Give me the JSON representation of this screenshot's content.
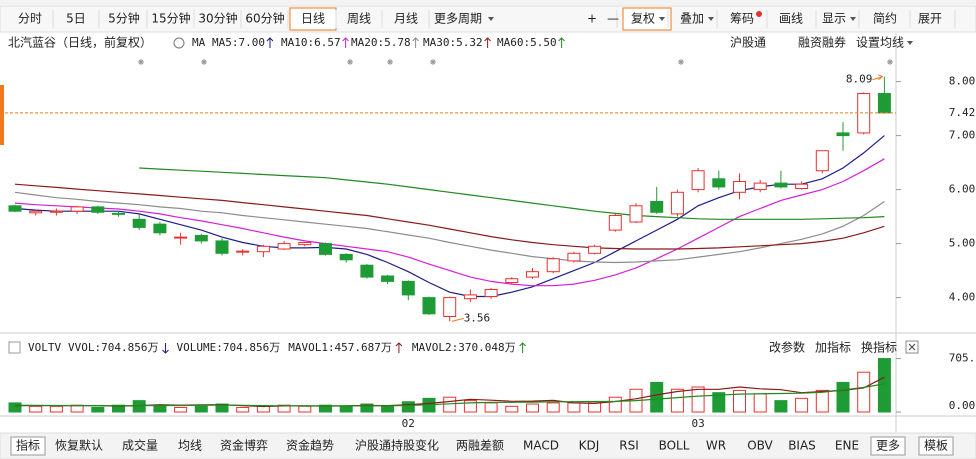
{
  "toolbar": {
    "periods": [
      "分时",
      "5日",
      "5分钟",
      "15分钟",
      "30分钟",
      "60分钟",
      "日线",
      "周线",
      "月线",
      "更多周期"
    ],
    "selected": 6,
    "tools": [
      "+",
      "—",
      "复权",
      "叠加",
      "筹码",
      "画线",
      "显示",
      "简约",
      "展开"
    ],
    "highlighted_tool": 2
  },
  "legend": {
    "title": "北汽蓝谷（日线，前复权）",
    "ma_label": "MA",
    "links": [
      "沪股通",
      "融资融券",
      "设置均线"
    ]
  },
  "chart_data": {
    "type": "candlestick",
    "categories": [
      null,
      null,
      null,
      null,
      null,
      null,
      null,
      null,
      null,
      null,
      null,
      null,
      null,
      null,
      null,
      null,
      null,
      null,
      null,
      "02",
      null,
      null,
      null,
      null,
      null,
      null,
      null,
      null,
      null,
      null,
      null,
      null,
      null,
      "03",
      null,
      null,
      null,
      null,
      null,
      null,
      null,
      null,
      null
    ],
    "open": [
      5.7,
      5.57,
      5.58,
      5.6,
      5.68,
      5.56,
      5.45,
      5.36,
      5.12,
      5.15,
      5.05,
      4.85,
      4.85,
      4.9,
      4.98,
      5.0,
      4.8,
      4.6,
      4.4,
      4.3,
      4.0,
      3.65,
      3.98,
      4.02,
      4.28,
      4.38,
      4.48,
      4.68,
      4.82,
      5.25,
      5.4,
      5.78,
      5.55,
      6.0,
      6.2,
      5.95,
      6.0,
      6.12,
      6.02,
      6.35,
      7.05,
      7.05,
      7.78
    ],
    "high": [
      5.72,
      5.62,
      5.65,
      5.7,
      5.7,
      5.6,
      5.55,
      5.4,
      5.2,
      5.18,
      5.1,
      4.9,
      4.98,
      5.05,
      5.02,
      5.02,
      4.82,
      4.62,
      4.42,
      4.32,
      4.02,
      4.02,
      4.15,
      4.18,
      4.38,
      4.55,
      4.75,
      4.85,
      4.98,
      5.55,
      5.75,
      6.05,
      6.0,
      6.4,
      6.35,
      6.3,
      6.18,
      6.35,
      6.15,
      6.72,
      7.25,
      7.8,
      8.09
    ],
    "low": [
      5.58,
      5.52,
      5.52,
      5.55,
      5.55,
      5.5,
      5.25,
      5.15,
      4.98,
      5.0,
      4.78,
      4.78,
      4.75,
      4.88,
      4.95,
      4.78,
      4.65,
      4.35,
      4.25,
      3.95,
      3.68,
      3.56,
      3.92,
      3.98,
      4.25,
      4.35,
      4.45,
      4.65,
      4.8,
      5.22,
      5.38,
      5.55,
      5.5,
      5.95,
      6.0,
      5.82,
      5.95,
      6.02,
      6.0,
      6.3,
      6.72,
      7.02,
      7.42
    ],
    "close": [
      5.6,
      5.6,
      5.6,
      5.68,
      5.58,
      5.55,
      5.3,
      5.2,
      5.12,
      5.05,
      4.82,
      4.86,
      4.95,
      5.0,
      5.02,
      4.8,
      4.7,
      4.38,
      4.3,
      4.05,
      3.7,
      4.0,
      4.05,
      4.15,
      4.35,
      4.48,
      4.72,
      4.82,
      4.95,
      5.52,
      5.7,
      5.58,
      5.95,
      6.35,
      6.05,
      6.15,
      6.12,
      6.05,
      6.1,
      6.72,
      7.0,
      7.78,
      7.42
    ],
    "up_color": "#e8312f",
    "down_color": "#1f9b35",
    "price_line_color": "#f07a1a",
    "ylim": [
      3.4,
      8.4
    ],
    "yticks": [
      {
        "value": 4,
        "label": "4.00"
      },
      {
        "value": 5,
        "label": "5.00"
      },
      {
        "value": 6,
        "label": "6.00"
      },
      {
        "value": 7,
        "label": "7.00"
      },
      {
        "value": 8,
        "label": "8.00"
      }
    ],
    "ma_lines": [
      {
        "label": "MA5:7.00",
        "color": "#1c1c8c",
        "rising": true,
        "values": [
          5.65,
          5.62,
          5.6,
          5.6,
          5.6,
          5.6,
          5.55,
          5.45,
          5.35,
          5.25,
          5.12,
          5.02,
          4.95,
          4.92,
          4.92,
          4.93,
          4.9,
          4.8,
          4.65,
          4.48,
          4.28,
          4.1,
          4.02,
          4.02,
          4.1,
          4.2,
          4.35,
          4.5,
          4.65,
          4.85,
          5.05,
          5.25,
          5.45,
          5.7,
          5.85,
          5.98,
          6.05,
          6.1,
          6.1,
          6.2,
          6.4,
          6.68,
          7.0
        ]
      },
      {
        "label": "MA10:6.57",
        "color": "#d61fd6",
        "rising": true,
        "values": [
          5.75,
          5.72,
          5.7,
          5.68,
          5.66,
          5.64,
          5.6,
          5.55,
          5.48,
          5.42,
          5.35,
          5.28,
          5.2,
          5.12,
          5.05,
          5.0,
          4.95,
          4.9,
          4.85,
          4.75,
          4.62,
          4.5,
          4.38,
          4.3,
          4.25,
          4.22,
          4.22,
          4.25,
          4.32,
          4.42,
          4.55,
          4.72,
          4.9,
          5.1,
          5.3,
          5.5,
          5.65,
          5.8,
          5.9,
          6.0,
          6.15,
          6.35,
          6.57
        ]
      },
      {
        "label": "MA20:5.78",
        "color": "#8c8c8c",
        "rising": true,
        "values": [
          5.95,
          5.9,
          5.85,
          5.82,
          5.78,
          5.75,
          5.72,
          5.68,
          5.65,
          5.6,
          5.57,
          5.52,
          5.48,
          5.44,
          5.4,
          5.36,
          5.32,
          5.28,
          5.22,
          5.16,
          5.1,
          5.02,
          4.95,
          4.88,
          4.82,
          4.76,
          4.72,
          4.68,
          4.66,
          4.65,
          4.66,
          4.68,
          4.7,
          4.75,
          4.8,
          4.85,
          4.92,
          5.0,
          5.08,
          5.18,
          5.32,
          5.52,
          5.78
        ]
      },
      {
        "label": "MA30:5.32",
        "color": "#8b1a1a",
        "rising": true,
        "values": [
          6.1,
          6.07,
          6.04,
          6.01,
          5.98,
          5.95,
          5.92,
          5.89,
          5.86,
          5.83,
          5.8,
          5.76,
          5.72,
          5.68,
          5.64,
          5.6,
          5.56,
          5.52,
          5.46,
          5.4,
          5.34,
          5.27,
          5.2,
          5.13,
          5.07,
          5.02,
          4.98,
          4.95,
          4.92,
          4.91,
          4.9,
          4.9,
          4.9,
          4.91,
          4.92,
          4.94,
          4.96,
          4.98,
          5.0,
          5.04,
          5.1,
          5.2,
          5.32
        ]
      },
      {
        "label": "MA60:5.50",
        "color": "#1f8a1f",
        "rising": true,
        "values": [
          null,
          null,
          null,
          null,
          null,
          null,
          6.4,
          6.38,
          6.36,
          6.34,
          6.32,
          6.3,
          6.28,
          6.26,
          6.24,
          6.22,
          6.18,
          6.14,
          6.1,
          6.05,
          6.0,
          5.95,
          5.9,
          5.85,
          5.8,
          5.75,
          5.7,
          5.65,
          5.6,
          5.56,
          5.52,
          5.5,
          5.48,
          5.46,
          5.45,
          5.45,
          5.45,
          5.45,
          5.45,
          5.46,
          5.47,
          5.48,
          5.5
        ]
      }
    ]
  },
  "volume_chart": {
    "type": "bar",
    "name": "VOLTV",
    "items": [
      {
        "label": "VVOL:704.856万",
        "color": "#1c1c8c",
        "rising": false
      },
      {
        "label": "VOLUME:704.856万",
        "color": "#666666",
        "rising": null
      }
    ],
    "values": [
      120,
      75,
      75,
      90,
      60,
      90,
      150,
      90,
      60,
      75,
      105,
      60,
      75,
      90,
      75,
      90,
      75,
      105,
      75,
      135,
      180,
      195,
      150,
      120,
      75,
      105,
      120,
      120,
      135,
      195,
      300,
      390,
      300,
      330,
      255,
      285,
      240,
      150,
      180,
      285,
      390,
      525,
      704.856
    ],
    "ylim": [
      0,
      765
    ],
    "yticks": [
      {
        "value": 0,
        "label": "0.00"
      },
      {
        "value": 705,
        "label": "705."
      }
    ],
    "lines": [
      {
        "label": "MAVOL1:457.687万",
        "color": "#8b1a1a",
        "rising": true,
        "values": [
          84,
          84,
          84,
          84,
          84,
          78,
          84,
          96,
          90,
          93,
          96,
          84,
          72,
          81,
          81,
          78,
          81,
          87,
          84,
          96,
          114,
          138,
          168,
          156,
          141,
          144,
          153,
          120,
          114,
          138,
          174,
          225,
          270,
          300,
          300,
          330,
          306,
          294,
          255,
          270,
          285,
          318,
          457.687
        ]
      },
      {
        "label": "MAVOL2:370.048万",
        "color": "#1f8a1f",
        "rising": true,
        "values": [
          90,
          88,
          86,
          85,
          84,
          82,
          84,
          86,
          86,
          88,
          90,
          88,
          84,
          82,
          80,
          80,
          80,
          82,
          82,
          86,
          96,
          108,
          120,
          126,
          128,
          130,
          134,
          136,
          138,
          140,
          150,
          170,
          190,
          210,
          222,
          236,
          240,
          244,
          248,
          260,
          290,
          325,
          370.048
        ]
      }
    ],
    "links": [
      "改参数",
      "加指标",
      "换指标"
    ]
  },
  "bottom_tabs": {
    "items": [
      "指标",
      "恢复默认",
      "成交量",
      "均线",
      "资金博弈",
      "资金趋势",
      "沪股通持股变化",
      "两融差额",
      "MACD",
      "KDJ",
      "RSI",
      "BOLL",
      "WR",
      "OBV",
      "BIAS",
      "ENE",
      "更多",
      "模板"
    ],
    "active": 3,
    "boxed": [
      0,
      16,
      17
    ]
  }
}
